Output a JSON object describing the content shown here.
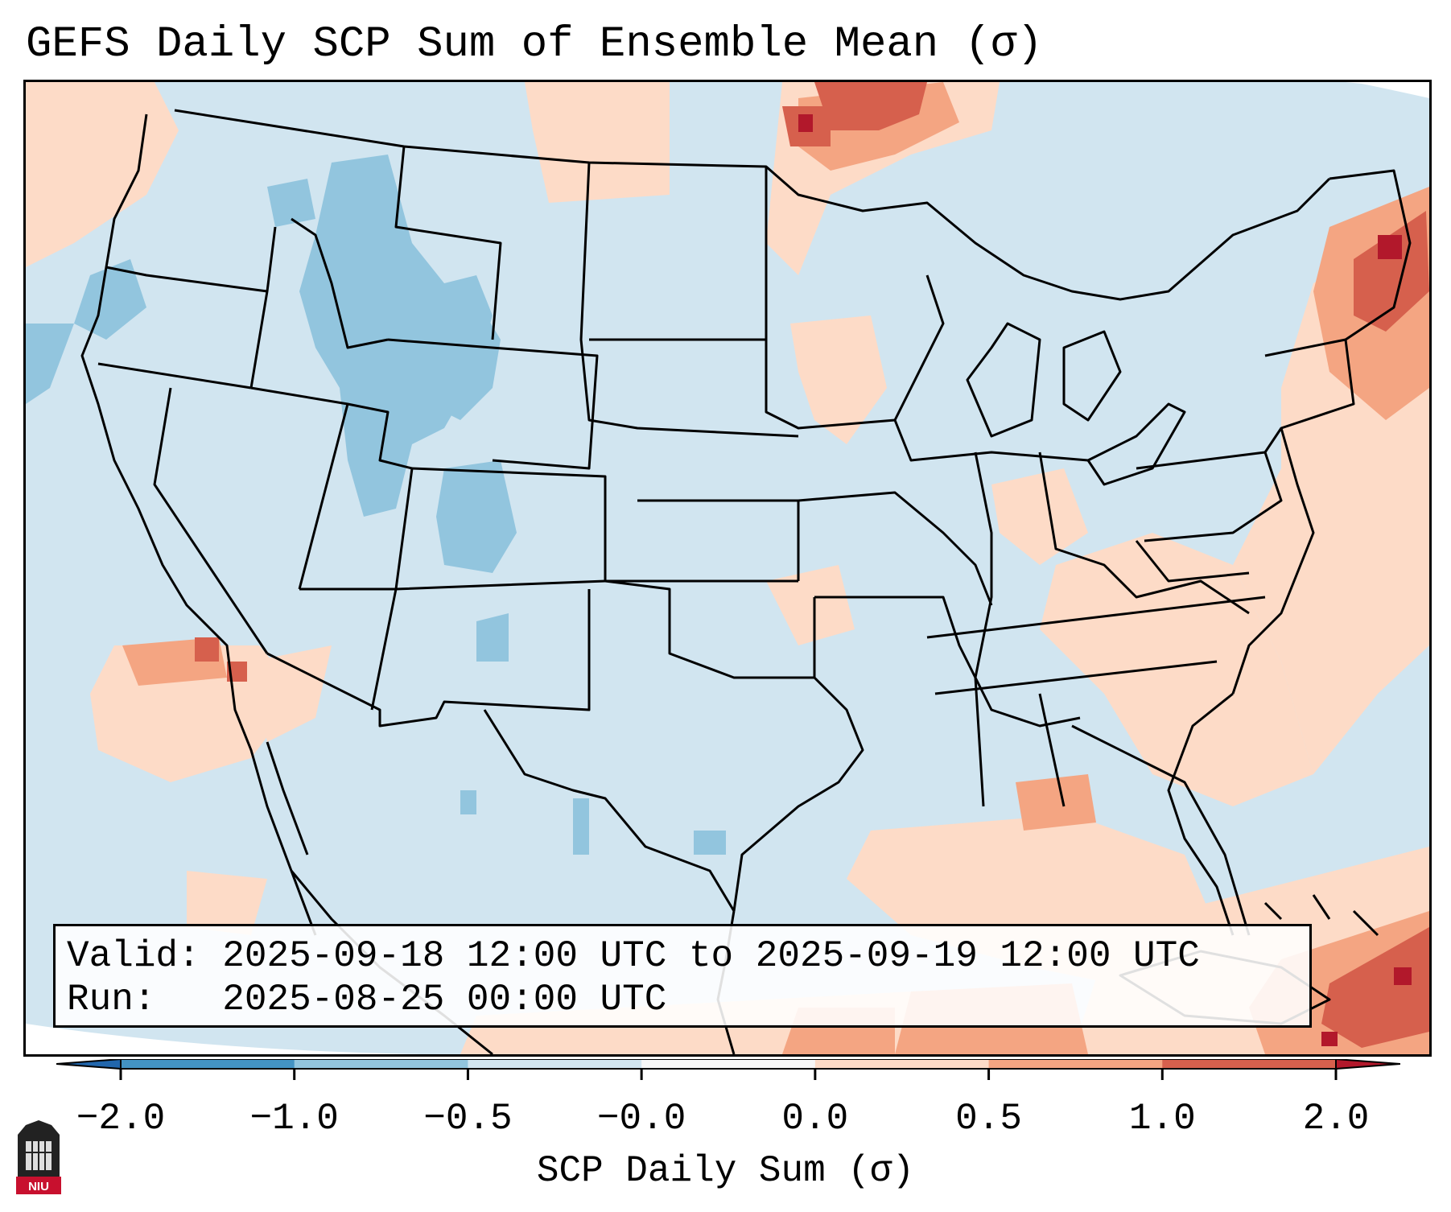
{
  "map": {
    "title": "GEFS Daily SCP Sum of Ensemble Mean (σ)",
    "region": "Continental United States",
    "colors": {
      "ocean_background": "#d1e5f0",
      "weak_negative": "#d1e5f0",
      "moderate_negative": "#92c5de",
      "strong_negative": "#4393c3",
      "weak_positive": "#fddbc7",
      "moderate_positive": "#f4a582",
      "strong_positive": "#d6604d",
      "extreme_positive": "#b2182b",
      "border_lines": "#000000"
    }
  },
  "info": {
    "valid_label": "Valid:",
    "valid_value": "2025-09-18 12:00 UTC to 2025-09-19 12:00 UTC",
    "run_label": "Run:",
    "run_value": "2025-08-25 00:00 UTC"
  },
  "colorbar": {
    "label": "SCP Daily Sum (σ)",
    "ticks": [
      "−2.0",
      "−1.0",
      "−0.5",
      "−0.0",
      "0.0",
      "0.5",
      "1.0",
      "2.0"
    ],
    "bin_colors": [
      "#4393c3",
      "#92c5de",
      "#d1e5f0",
      "#f7f7f7",
      "#fddbc7",
      "#f4a582",
      "#d6604d"
    ],
    "under_color": "#2166ac",
    "over_color": "#b2182b"
  },
  "logo": {
    "text": "NIU",
    "colors": {
      "shield": "#222222",
      "banner": "#c8102e"
    }
  }
}
